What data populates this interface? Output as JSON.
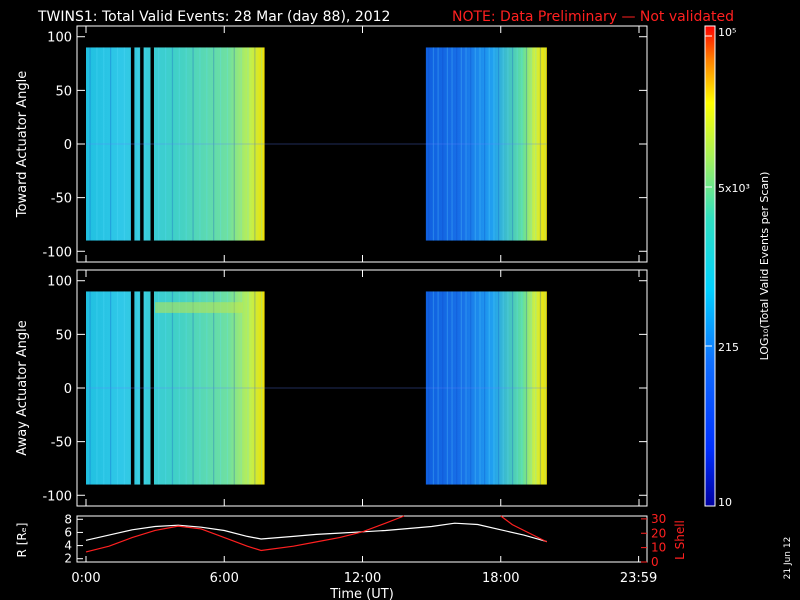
{
  "header": {
    "title": "TWINS1: Total Valid Events: 28 Mar (day  88), 2012",
    "note": "NOTE: Data Preliminary — Not validated",
    "title_color": "#ffffff",
    "note_color": "#ff2020"
  },
  "side_stamp": "21 Jun 12",
  "chart_data": [
    {
      "type": "heatmap",
      "ylabel": "Toward Actuator Angle",
      "ylim": [
        -110,
        110
      ],
      "yticks": [
        100,
        50,
        0,
        -50,
        -100
      ],
      "angle_range": [
        -90,
        90
      ],
      "data_intervals_hours": [
        [
          0.0,
          7.75
        ],
        [
          14.75,
          20.0
        ]
      ],
      "gaps_hours": [
        [
          1.95,
          2.1
        ],
        [
          2.35,
          2.5
        ],
        [
          2.8,
          2.95
        ]
      ],
      "note": "log10 event counts; values shown by color"
    },
    {
      "type": "heatmap",
      "ylabel": "Away Actuator Angle",
      "ylim": [
        -110,
        110
      ],
      "yticks": [
        100,
        50,
        0,
        -50,
        -100
      ],
      "angle_range": [
        -90,
        90
      ],
      "data_intervals_hours": [
        [
          0.0,
          7.75
        ],
        [
          14.75,
          20.0
        ]
      ],
      "gaps_hours": [
        [
          1.95,
          2.1
        ],
        [
          2.35,
          2.5
        ],
        [
          2.8,
          2.95
        ]
      ]
    },
    {
      "type": "line",
      "xlabel": "Time (UT)",
      "xticks": [
        "0:00",
        "6:00",
        "12:00",
        "18:00",
        "23:59"
      ],
      "xlim_hours": [
        0,
        24
      ],
      "ylabel_left": "R [Rₑ]",
      "ylabel_right": "L Shell",
      "yticks_left": [
        2,
        4,
        6,
        8
      ],
      "ylim_left": [
        1.5,
        8.5
      ],
      "yticks_right": [
        0,
        10,
        20,
        30
      ],
      "ylim_right": [
        0,
        32
      ],
      "series": [
        {
          "axis": "left",
          "color": "#ffffff",
          "x": [
            0,
            1,
            2,
            3,
            4,
            5,
            6,
            7,
            7.6,
            9,
            10,
            11,
            12,
            13,
            14,
            15,
            16,
            17,
            18,
            19,
            20
          ],
          "y": [
            4.8,
            5.6,
            6.4,
            6.9,
            7.1,
            6.8,
            6.3,
            5.4,
            5.0,
            5.4,
            5.7,
            5.9,
            6.1,
            6.3,
            6.6,
            6.9,
            7.4,
            7.2,
            6.4,
            5.6,
            4.6
          ]
        },
        {
          "axis": "right",
          "color": "#ff2020",
          "x": [
            0,
            1,
            2,
            3,
            4,
            5,
            6,
            7,
            7.6,
            9,
            10,
            11,
            12,
            13,
            13.8
          ],
          "y": [
            7,
            11,
            17,
            22,
            25,
            23,
            17,
            11,
            8,
            11,
            14,
            17,
            21,
            27,
            32
          ]
        },
        {
          "axis": "right",
          "color": "#ff2020",
          "x": [
            18,
            18.5,
            19.5,
            20
          ],
          "y": [
            32,
            26,
            18,
            14
          ]
        }
      ]
    }
  ],
  "colorbar": {
    "label": "LOG₁₀(Total Valid  Events per Scan)",
    "labels": [
      "10",
      "215",
      "5x10³",
      "10⁵"
    ]
  }
}
